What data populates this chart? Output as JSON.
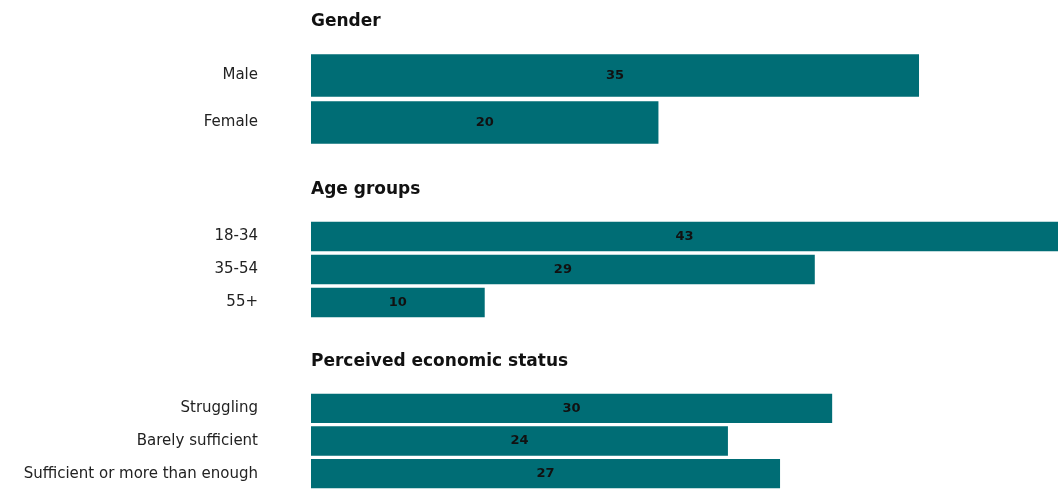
{
  "chart_data": [
    {
      "type": "bar",
      "orientation": "horizontal",
      "title": "Gender",
      "categories": [
        "Male",
        "Female"
      ],
      "values": [
        35,
        20
      ],
      "color": "#006d75",
      "data_labels": true,
      "grid": false,
      "legend": false,
      "tick_labels": "y"
    },
    {
      "type": "bar",
      "orientation": "horizontal",
      "title": "Age groups",
      "categories": [
        "18-34",
        "35-54",
        "55+"
      ],
      "values": [
        43,
        29,
        10
      ],
      "color": "#006d75",
      "data_labels": true,
      "grid": false,
      "legend": false,
      "tick_labels": "y"
    },
    {
      "type": "bar",
      "orientation": "horizontal",
      "title": "Perceived economic status",
      "categories": [
        "Struggling",
        "Barely sufficient",
        "Sufficient or more than enough"
      ],
      "values": [
        30,
        24,
        27
      ],
      "color": "#006d75",
      "data_labels": true,
      "grid": false,
      "legend": false,
      "tick_labels": "y"
    }
  ]
}
